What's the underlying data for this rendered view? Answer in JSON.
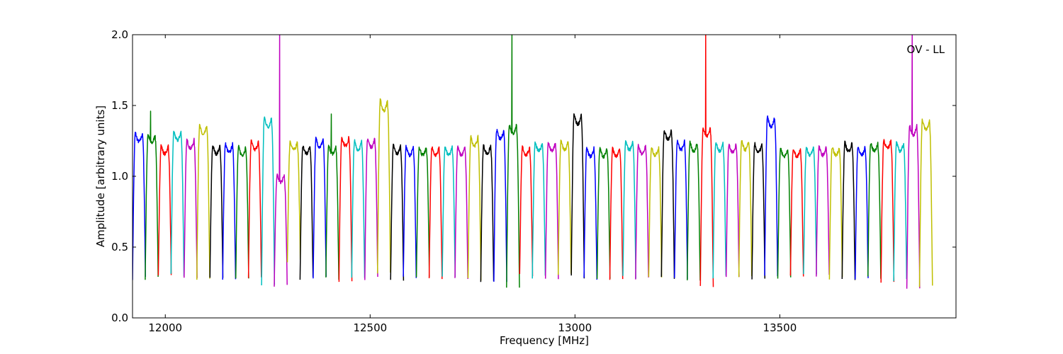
{
  "chart_data": {
    "type": "line",
    "title": "",
    "xlabel": "Frequency [MHz]",
    "ylabel": "Amplitude [arbitrary units]",
    "annotation": "OV - LL",
    "xlim": [
      11920,
      13930
    ],
    "ylim": [
      0.0,
      2.0
    ],
    "xticks": [
      12000,
      12500,
      13000,
      13500
    ],
    "yticks": [
      0.0,
      0.5,
      1.0,
      1.5,
      2.0
    ],
    "ytick_labels": [
      "0.0",
      "0.5",
      "1.0",
      "1.5",
      "2.0"
    ],
    "grid": false,
    "legend": "none",
    "color_cycle": [
      "#0000ff",
      "#008000",
      "#ff0000",
      "#00bfbf",
      "#bf00bf",
      "#bfbf00",
      "#000000"
    ],
    "channel_model": {
      "channel_width_mhz": 31.5,
      "edge_minimum": 0.28,
      "typical_plateau": 1.2,
      "description": "Each coloured segment is one spectral channel: amplitude rises steeply from about 0.3 at the channel edge to a plateau near 1.2 and falls back to about 0.3 at the opposite edge."
    },
    "series": [
      {
        "start": 11920,
        "peak": 1.31,
        "min": 0.28
      },
      {
        "start": 11951,
        "peak": 1.3,
        "min": 0.28,
        "spike": 1.46
      },
      {
        "start": 11983,
        "peak": 1.22,
        "min": 0.29
      },
      {
        "start": 12014,
        "peak": 1.32,
        "min": 0.3
      },
      {
        "start": 12046,
        "peak": 1.26,
        "min": 0.28
      },
      {
        "start": 12077,
        "peak": 1.36,
        "min": 0.27
      },
      {
        "start": 12109,
        "peak": 1.22,
        "min": 0.28
      },
      {
        "start": 12140,
        "peak": 1.23,
        "min": 0.28
      },
      {
        "start": 12172,
        "peak": 1.21,
        "min": 0.29
      },
      {
        "start": 12203,
        "peak": 1.25,
        "min": 0.29
      },
      {
        "start": 12235,
        "peak": 1.42,
        "min": 0.23
      },
      {
        "start": 12266,
        "peak": 1.01,
        "min": 0.23,
        "spike": 2.0
      },
      {
        "start": 12298,
        "peak": 1.25,
        "min": 0.4
      },
      {
        "start": 12329,
        "peak": 1.22,
        "min": 0.28
      },
      {
        "start": 12361,
        "peak": 1.27,
        "min": 0.28
      },
      {
        "start": 12392,
        "peak": 1.22,
        "min": 0.28,
        "spike": 1.44
      },
      {
        "start": 12424,
        "peak": 1.28,
        "min": 0.26
      },
      {
        "start": 12455,
        "peak": 1.25,
        "min": 0.29
      },
      {
        "start": 12487,
        "peak": 1.27,
        "min": 0.28
      },
      {
        "start": 12518,
        "peak": 1.54,
        "min": 0.32
      },
      {
        "start": 12550,
        "peak": 1.22,
        "min": 0.27
      },
      {
        "start": 12581,
        "peak": 1.21,
        "min": 0.28
      },
      {
        "start": 12613,
        "peak": 1.21,
        "min": 0.29
      },
      {
        "start": 12644,
        "peak": 1.21,
        "min": 0.28
      },
      {
        "start": 12676,
        "peak": 1.21,
        "min": 0.28
      },
      {
        "start": 12707,
        "peak": 1.21,
        "min": 0.28
      },
      {
        "start": 12739,
        "peak": 1.28,
        "min": 0.27
      },
      {
        "start": 12770,
        "peak": 1.22,
        "min": 0.26
      },
      {
        "start": 12802,
        "peak": 1.33,
        "min": 0.26
      },
      {
        "start": 12833,
        "peak": 1.37,
        "min": 0.22,
        "spike": 2.0
      },
      {
        "start": 12865,
        "peak": 1.21,
        "min": 0.3
      },
      {
        "start": 12896,
        "peak": 1.24,
        "min": 0.29
      },
      {
        "start": 12928,
        "peak": 1.24,
        "min": 0.28
      },
      {
        "start": 12959,
        "peak": 1.25,
        "min": 0.3
      },
      {
        "start": 12991,
        "peak": 1.44,
        "min": 0.29
      },
      {
        "start": 13022,
        "peak": 1.2,
        "min": 0.28
      },
      {
        "start": 13054,
        "peak": 1.2,
        "min": 0.28
      },
      {
        "start": 13085,
        "peak": 1.2,
        "min": 0.27
      },
      {
        "start": 13117,
        "peak": 1.25,
        "min": 0.29
      },
      {
        "start": 13148,
        "peak": 1.22,
        "min": 0.28
      },
      {
        "start": 13180,
        "peak": 1.21,
        "min": 0.29
      },
      {
        "start": 13211,
        "peak": 1.33,
        "min": 0.28
      },
      {
        "start": 13243,
        "peak": 1.25,
        "min": 0.28
      },
      {
        "start": 13274,
        "peak": 1.24,
        "min": 0.26
      },
      {
        "start": 13306,
        "peak": 1.35,
        "min": 0.22,
        "spike": 2.0
      },
      {
        "start": 13337,
        "peak": 1.24,
        "min": 0.29
      },
      {
        "start": 13369,
        "peak": 1.23,
        "min": 0.28
      },
      {
        "start": 13400,
        "peak": 1.25,
        "min": 0.29
      },
      {
        "start": 13432,
        "peak": 1.23,
        "min": 0.28
      },
      {
        "start": 13463,
        "peak": 1.42,
        "min": 0.29
      },
      {
        "start": 13495,
        "peak": 1.2,
        "min": 0.29
      },
      {
        "start": 13526,
        "peak": 1.2,
        "min": 0.29
      },
      {
        "start": 13558,
        "peak": 1.21,
        "min": 0.3
      },
      {
        "start": 13589,
        "peak": 1.21,
        "min": 0.3
      },
      {
        "start": 13621,
        "peak": 1.21,
        "min": 0.28
      },
      {
        "start": 13652,
        "peak": 1.24,
        "min": 0.28
      },
      {
        "start": 13684,
        "peak": 1.21,
        "min": 0.27
      },
      {
        "start": 13715,
        "peak": 1.24,
        "min": 0.28
      },
      {
        "start": 13747,
        "peak": 1.26,
        "min": 0.26
      },
      {
        "start": 13778,
        "peak": 1.24,
        "min": 0.27
      },
      {
        "start": 13810,
        "peak": 1.36,
        "min": 0.2,
        "spike": 2.0
      },
      {
        "start": 13841,
        "peak": 1.4,
        "min": 0.22
      }
    ]
  }
}
